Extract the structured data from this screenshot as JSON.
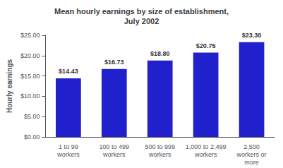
{
  "chart_data": {
    "type": "bar",
    "title": "Mean hourly earnings by size of establishment,\nJuly 2002",
    "categories": [
      "1 to 99\nworkers",
      "100 to 499\nworkers",
      "500 to 999\nworkers",
      "1,000 to 2,499\nworkers",
      "2,500\nworkers or\nmore"
    ],
    "values": [
      14.43,
      16.73,
      18.8,
      20.75,
      23.3
    ],
    "value_labels": [
      "$14.43",
      "$16.73",
      "$18.80",
      "$20.75",
      "$23.30"
    ],
    "data_labels": true,
    "color": "#2020CC",
    "ylabel": "Hourly earnings",
    "ylim": [
      0,
      25
    ],
    "yticks": [
      {
        "value": 0,
        "label": "$0.00"
      },
      {
        "value": 5,
        "label": "$5.00"
      },
      {
        "value": 10,
        "label": "$10.00"
      },
      {
        "value": 15,
        "label": "$15.00"
      },
      {
        "value": 20,
        "label": "$20.00"
      },
      {
        "value": 25,
        "label": "$25.00"
      }
    ],
    "grid": false
  }
}
